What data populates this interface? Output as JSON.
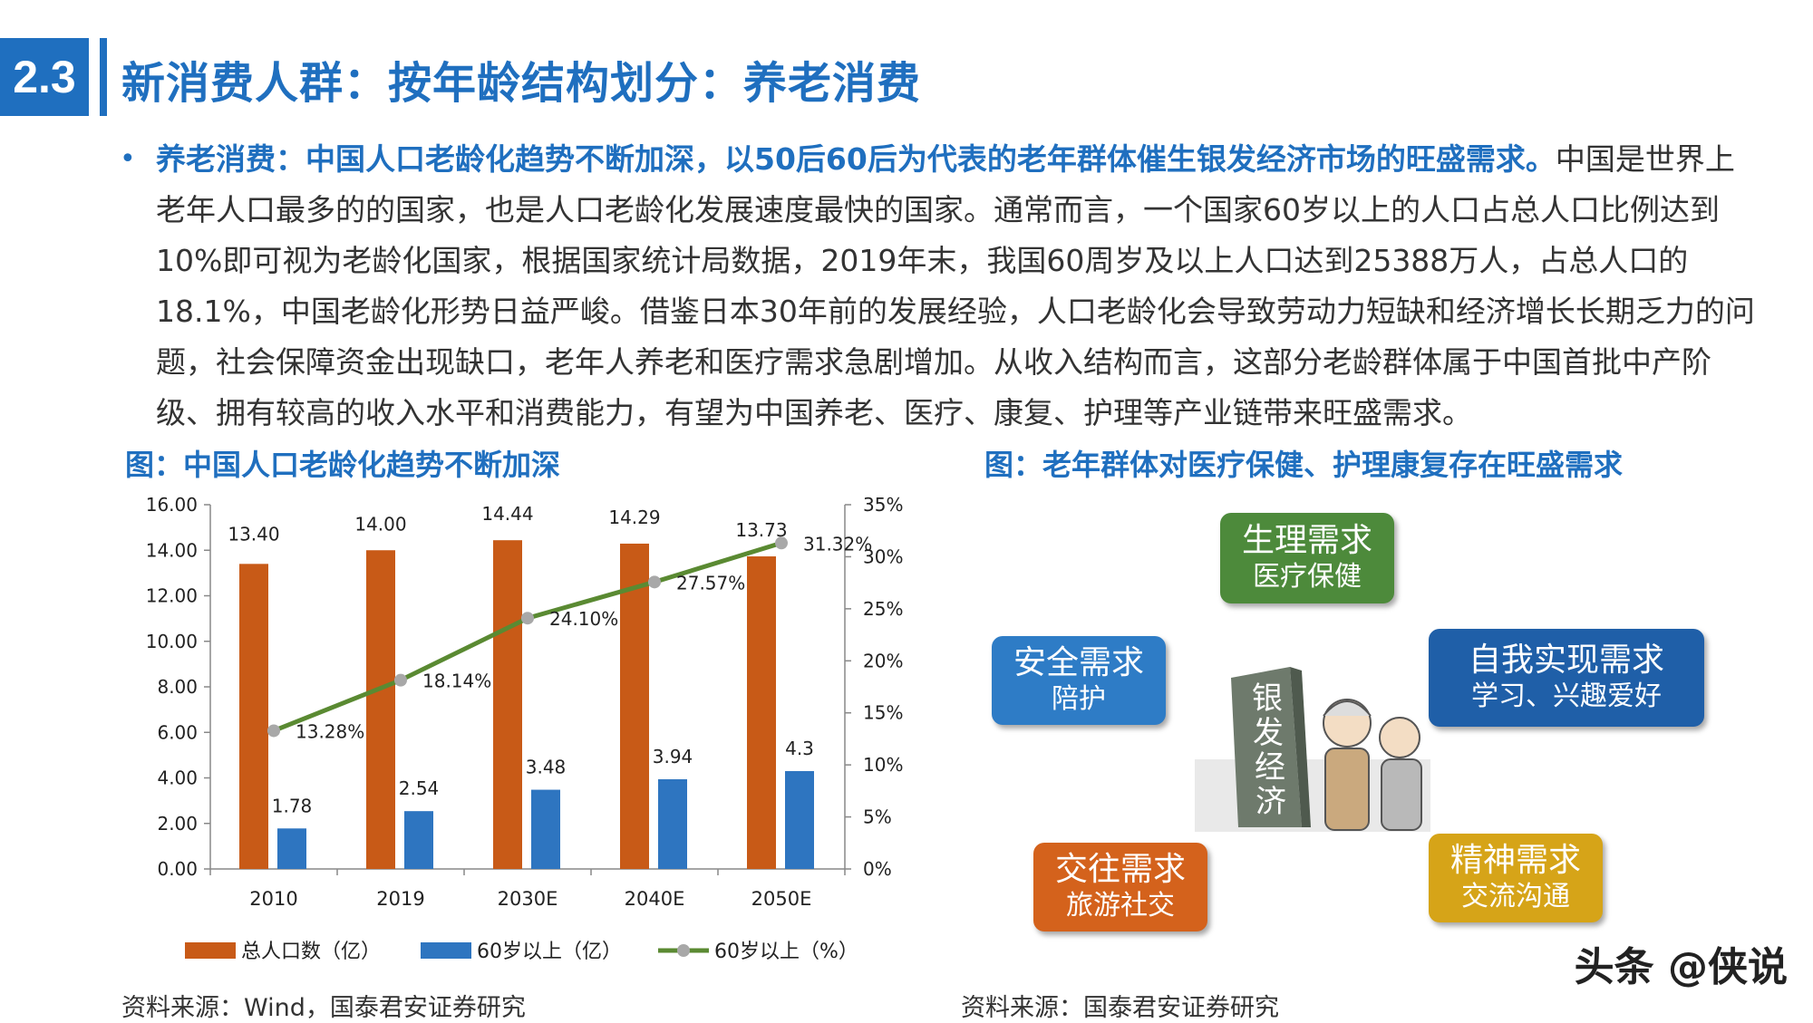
{
  "header": {
    "section_number": "2.3",
    "title": "新消费人群：按年龄结构划分：养老消费"
  },
  "body": {
    "lead": "养老消费：中国人口老龄化趋势不断加深，以50后60后为代表的老年群体催生银发经济市场的旺盛需求。",
    "text": "中国是世界上老年人口最多的的国家，也是人口老龄化发展速度最快的国家。通常而言，一个国家60岁以上的人口占总人口比例达到10%即可视为老龄化国家，根据国家统计局数据，2019年末，我国60周岁及以上人口达到25388万人，占总人口的18.1%，中国老龄化形势日益严峻。借鉴日本30年前的发展经验，人口老龄化会导致劳动力短缺和经济增长长期乏力的问题，社会保障资金出现缺口，老年人养老和医疗需求急剧增加。从收入结构而言，这部分老龄群体属于中国首批中产阶级、拥有较高的收入水平和消费能力，有望为中国养老、医疗、康复、护理等产业链带来旺盛需求。"
  },
  "figure_left": {
    "title": "图：中国人口老龄化趋势不断加深",
    "source": "资料来源：Wind，国泰君安证券研究"
  },
  "figure_right": {
    "title": "图：老年群体对医疗保健、护理康复存在旺盛需求",
    "source": "资料来源：国泰君安证券研究",
    "center_label": "银发经济",
    "needs": [
      {
        "title": "生理需求",
        "subtitle": "医疗保健",
        "color": "#4d8a3b"
      },
      {
        "title": "安全需求",
        "subtitle": "陪护",
        "color": "#2e7cc6"
      },
      {
        "title": "自我实现需求",
        "subtitle": "学习、兴趣爱好",
        "color": "#1f5fa8"
      },
      {
        "title": "交往需求",
        "subtitle": "旅游社交",
        "color": "#d4621c"
      },
      {
        "title": "精神需求",
        "subtitle": "交流沟通",
        "color": "#d6a418"
      }
    ]
  },
  "chart_data": {
    "type": "bar",
    "categories": [
      "2010",
      "2019",
      "2030E",
      "2040E",
      "2050E"
    ],
    "y_left_ticks": [
      "16.00",
      "14.00",
      "12.00",
      "10.00",
      "8.00",
      "6.00",
      "4.00",
      "2.00",
      "0.00"
    ],
    "y_right_ticks": [
      "35%",
      "30%",
      "25%",
      "20%",
      "15%",
      "10%",
      "5%",
      "0%"
    ],
    "ylim_left": [
      0,
      16
    ],
    "ylim_right": [
      0,
      35
    ],
    "series": [
      {
        "name": "总人口数（亿）",
        "kind": "bar",
        "axis": "left",
        "color": "#c85a17",
        "values": [
          13.4,
          14.0,
          14.44,
          14.29,
          13.73
        ],
        "labels": [
          "13.40",
          "14.00",
          "14.44",
          "14.29",
          "13.73"
        ]
      },
      {
        "name": "60岁以上（亿）",
        "kind": "bar",
        "axis": "left",
        "color": "#2e75c0",
        "values": [
          1.78,
          2.54,
          3.48,
          3.94,
          4.3
        ],
        "labels": [
          "1.78",
          "2.54",
          "3.48",
          "3.94",
          "4.3"
        ]
      },
      {
        "name": "60岁以上（%）",
        "kind": "line",
        "axis": "right",
        "color": "#5a8a32",
        "marker_color": "#a8a8a8",
        "values": [
          13.28,
          18.14,
          24.1,
          27.57,
          31.32
        ],
        "labels": [
          "13.28%",
          "18.14%",
          "24.10%",
          "27.57%",
          "31.32%"
        ]
      }
    ],
    "legend_position": "bottom"
  },
  "watermark": "头条 @侠说"
}
